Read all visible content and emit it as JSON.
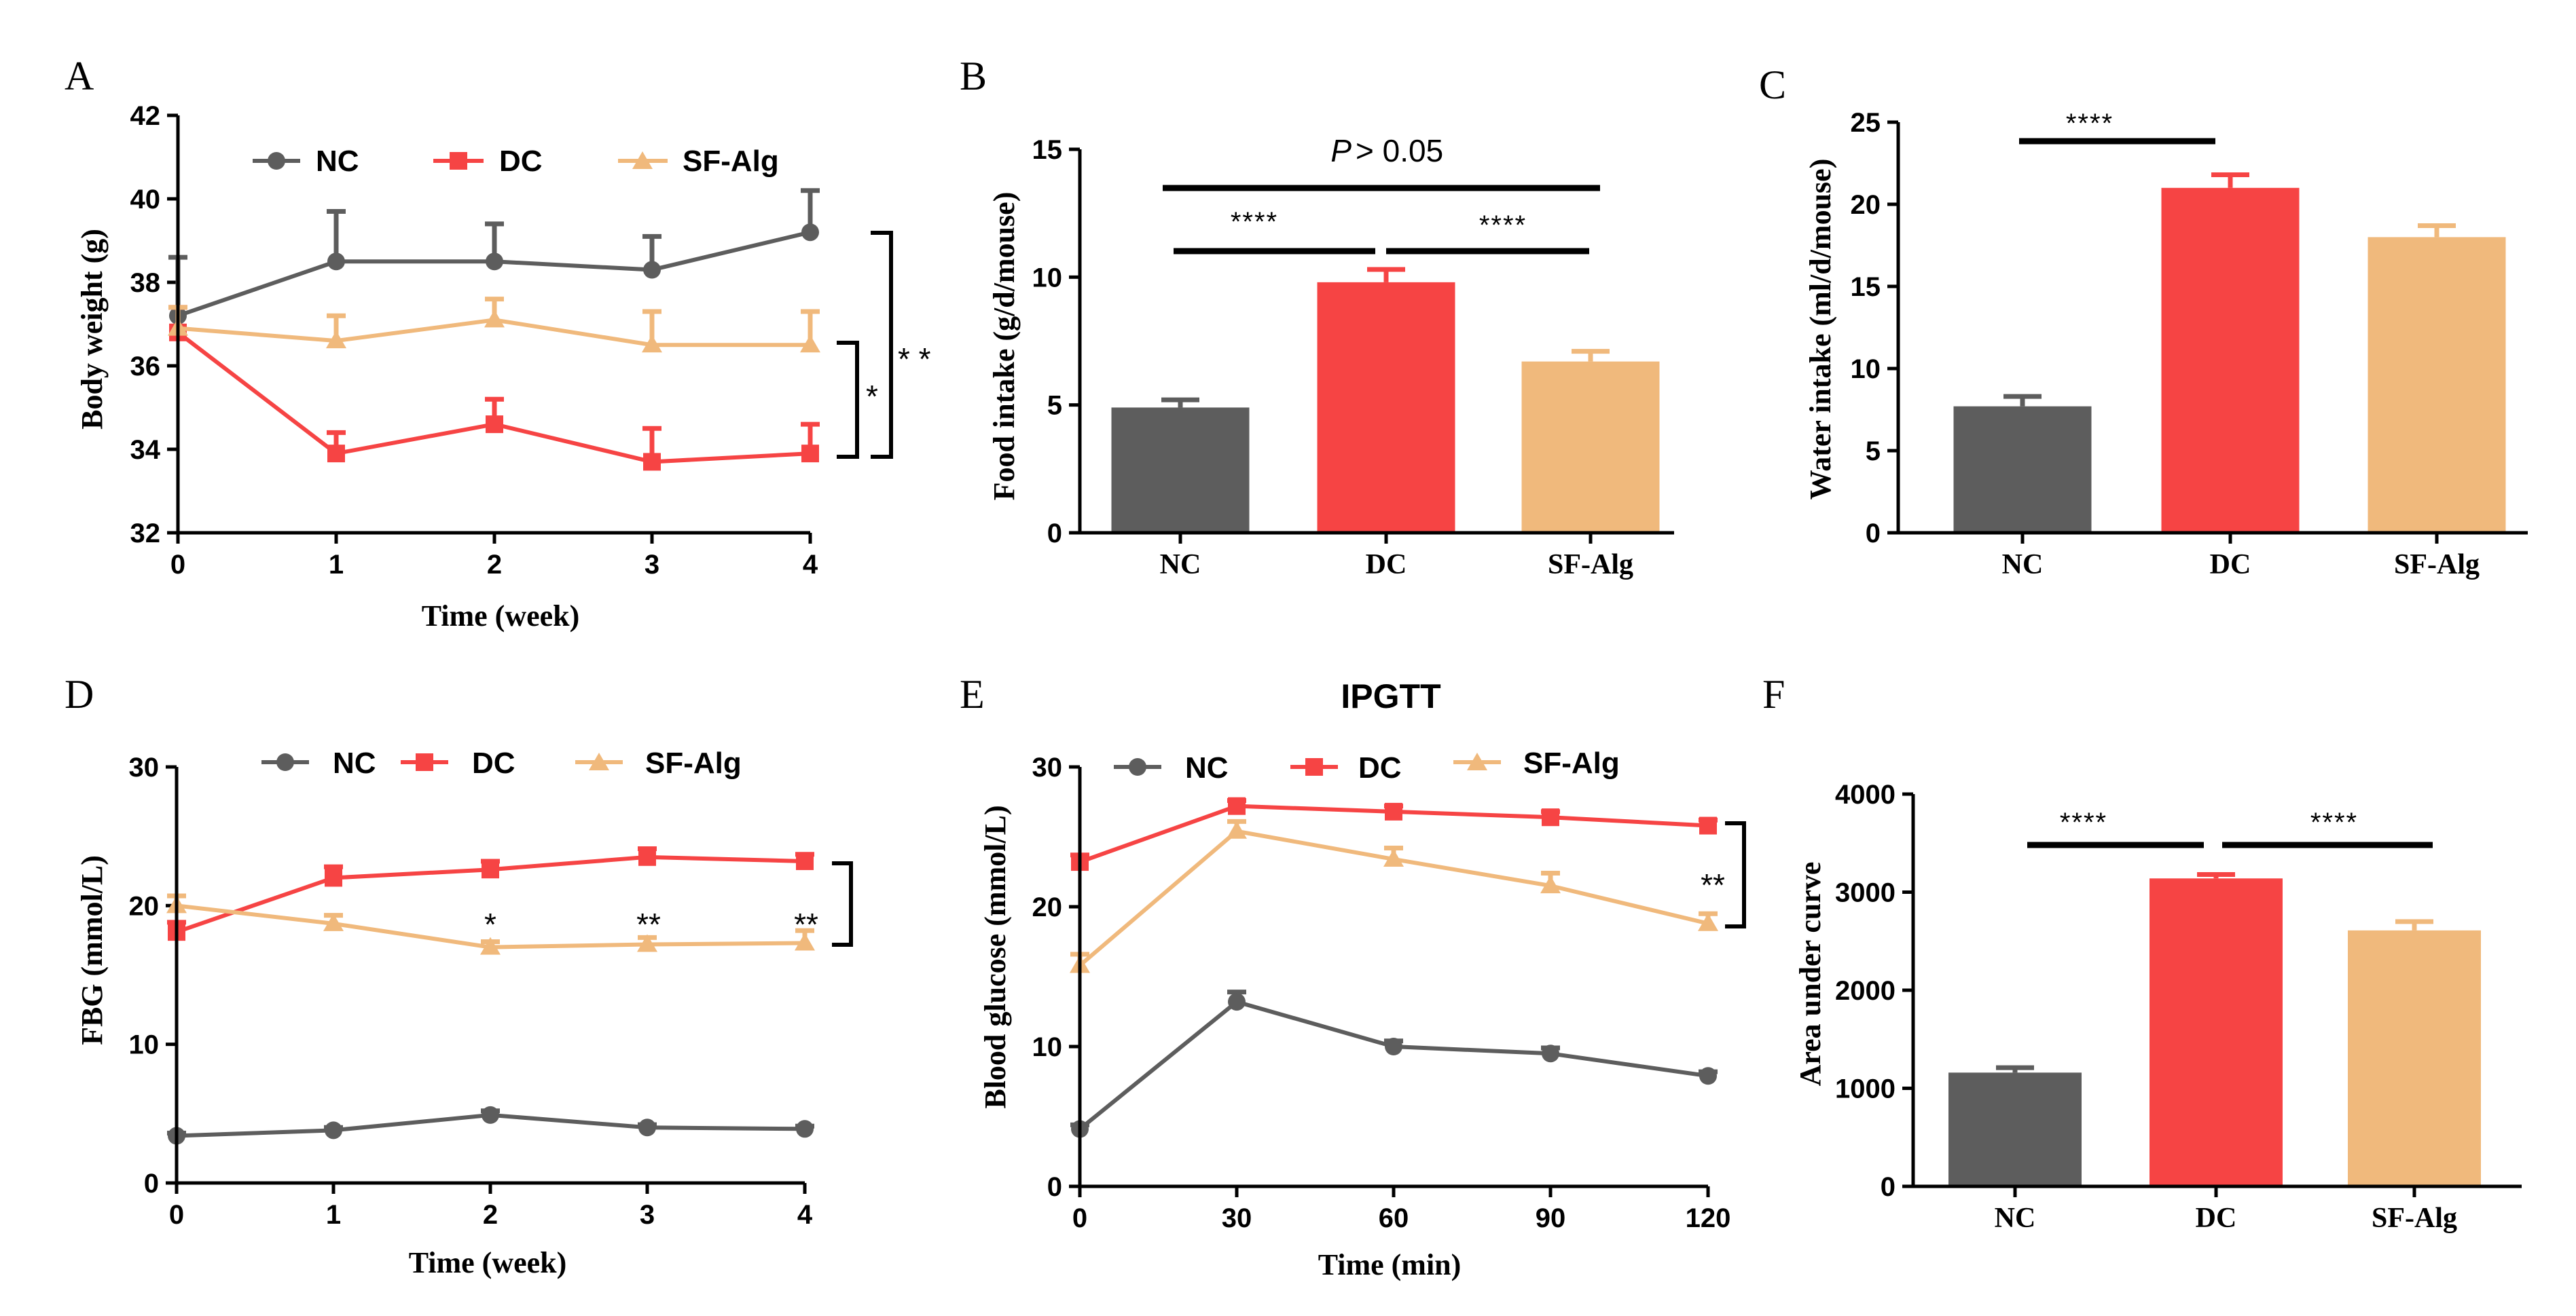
{
  "colors": {
    "NC": "#5d5d5d",
    "DC": "#f64444",
    "SF-Alg": "#f0b97c",
    "axis": "#000000"
  },
  "chart_data": [
    {
      "id": "A",
      "panel_label": "A",
      "type": "line",
      "title": "",
      "xlabel": "Time (week)",
      "ylabel": "Body weight (g)",
      "x": [
        0,
        1,
        2,
        3,
        4
      ],
      "xticks": [
        "0",
        "1",
        "2",
        "3",
        "4"
      ],
      "xlim": [
        0,
        4
      ],
      "ylim": [
        32,
        42
      ],
      "yticks": [
        "32",
        "34",
        "36",
        "38",
        "40",
        "42"
      ],
      "series": [
        {
          "name": "NC",
          "marker": "circle",
          "values": [
            37.2,
            38.5,
            38.5,
            38.3,
            39.2
          ],
          "errors": [
            1.4,
            1.2,
            0.9,
            0.8,
            1.0
          ]
        },
        {
          "name": "DC",
          "marker": "square",
          "values": [
            36.8,
            33.9,
            34.6,
            33.7,
            33.9
          ],
          "errors": [
            0.6,
            0.5,
            0.6,
            0.8,
            0.7
          ]
        },
        {
          "name": "SF-Alg",
          "marker": "triangle",
          "values": [
            36.9,
            36.6,
            37.1,
            36.5,
            36.5
          ],
          "errors": [
            0.5,
            0.6,
            0.5,
            0.8,
            0.8
          ]
        }
      ],
      "annotations": [
        "*",
        "* *"
      ]
    },
    {
      "id": "B",
      "panel_label": "B",
      "type": "bar",
      "title": "",
      "xlabel": "",
      "ylabel": "Food intake (g/d/mouse)",
      "categories": [
        "NC",
        "DC",
        "SF-Alg"
      ],
      "values": [
        4.9,
        9.8,
        6.7
      ],
      "errors": [
        0.3,
        0.5,
        0.4
      ],
      "ylim": [
        0,
        15
      ],
      "yticks": [
        "0",
        "5",
        "10",
        "15"
      ],
      "annotations": [
        "****",
        "****",
        "> 0.05"
      ],
      "p_label": "P"
    },
    {
      "id": "C",
      "panel_label": "C",
      "type": "bar",
      "title": "",
      "xlabel": "",
      "ylabel": "Water intake (ml/d/mouse)",
      "categories": [
        "NC",
        "DC",
        "SF-Alg"
      ],
      "values": [
        7.7,
        21.0,
        18.0
      ],
      "errors": [
        0.6,
        0.8,
        0.7
      ],
      "ylim": [
        0,
        25
      ],
      "yticks": [
        "0",
        "5",
        "10",
        "15",
        "20",
        "25"
      ],
      "annotations": [
        "****"
      ]
    },
    {
      "id": "D",
      "panel_label": "D",
      "type": "line",
      "title": "",
      "xlabel": "Time (week)",
      "ylabel": "FBG (mmol/L)",
      "x": [
        0,
        1,
        2,
        3,
        4
      ],
      "xticks": [
        "0",
        "1",
        "2",
        "3",
        "4"
      ],
      "xlim": [
        0,
        4
      ],
      "ylim": [
        0,
        30
      ],
      "yticks": [
        "0",
        "10",
        "20",
        "30"
      ],
      "series": [
        {
          "name": "NC",
          "marker": "circle",
          "values": [
            3.4,
            3.8,
            4.9,
            4.0,
            3.9
          ],
          "errors": [
            0.2,
            0.2,
            0.3,
            0.2,
            0.2
          ]
        },
        {
          "name": "DC",
          "marker": "square",
          "values": [
            18.1,
            22.0,
            22.6,
            23.5,
            23.2
          ],
          "errors": [
            0.7,
            0.8,
            0.6,
            0.6,
            0.5
          ]
        },
        {
          "name": "SF-Alg",
          "marker": "triangle",
          "values": [
            20.0,
            18.7,
            17.0,
            17.2,
            17.3
          ],
          "errors": [
            0.7,
            0.6,
            0.4,
            0.5,
            0.9
          ]
        }
      ],
      "annotations": [
        "*",
        "**",
        "**"
      ]
    },
    {
      "id": "E",
      "panel_label": "E",
      "type": "line",
      "title": "IPGTT",
      "xlabel": "Time (min)",
      "ylabel": "Blood glucose (mmol/L)",
      "x": [
        0,
        30,
        60,
        90,
        120
      ],
      "xticks": [
        "0",
        "30",
        "60",
        "90",
        "120"
      ],
      "xlim": [
        0,
        120
      ],
      "ylim": [
        0,
        30
      ],
      "yticks": [
        "0",
        "10",
        "20",
        "30"
      ],
      "series": [
        {
          "name": "NC",
          "marker": "circle",
          "values": [
            4.1,
            13.2,
            10.0,
            9.5,
            7.9
          ],
          "errors": [
            0.3,
            0.7,
            0.4,
            0.4,
            0.3
          ]
        },
        {
          "name": "DC",
          "marker": "square",
          "values": [
            23.2,
            27.2,
            26.8,
            26.4,
            25.8
          ],
          "errors": [
            0.5,
            0.4,
            0.4,
            0.4,
            0.4
          ]
        },
        {
          "name": "SF-Alg",
          "marker": "triangle",
          "values": [
            15.8,
            25.4,
            23.4,
            21.5,
            18.8
          ],
          "errors": [
            0.8,
            0.7,
            0.8,
            0.9,
            0.7
          ]
        }
      ],
      "annotations": [
        "**"
      ]
    },
    {
      "id": "F",
      "panel_label": "F",
      "type": "bar",
      "title": "",
      "xlabel": "",
      "ylabel": "Area under curve",
      "categories": [
        "NC",
        "DC",
        "SF-Alg"
      ],
      "values": [
        1160,
        3140,
        2610
      ],
      "errors": [
        50,
        40,
        90
      ],
      "ylim": [
        0,
        4000
      ],
      "yticks": [
        "0",
        "1000",
        "2000",
        "3000",
        "4000"
      ],
      "annotations": [
        "****",
        "****"
      ]
    }
  ]
}
